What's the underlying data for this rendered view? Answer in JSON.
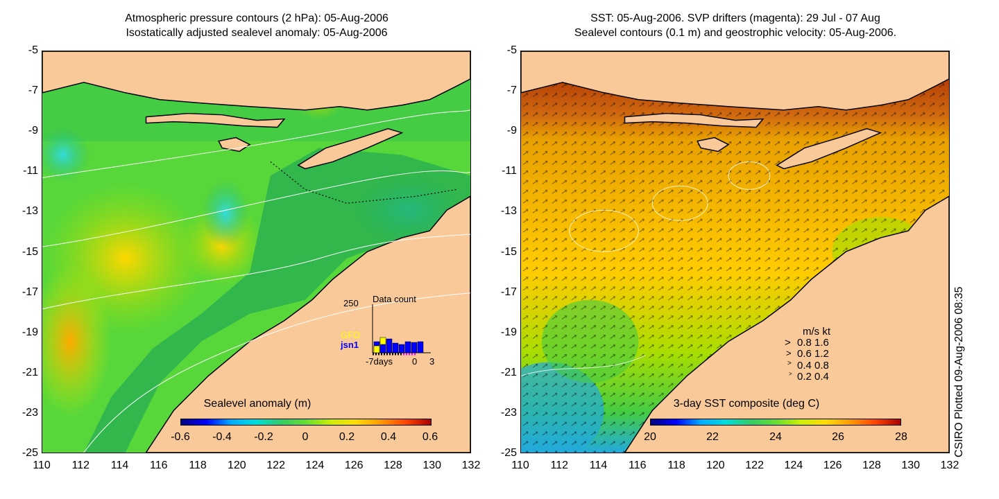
{
  "left_panel": {
    "title_line1": "Atmospheric pressure contours (2 hPa): 05-Aug-2006",
    "title_line2": "Isostatically adjusted sealevel anomaly: 05-Aug-2006",
    "colorbar_title": "Sealevel anomaly (m)",
    "colorbar_ticks": [
      "-0.6",
      "-0.4",
      "-0.2",
      "0",
      "0.2",
      "0.4",
      "0.6"
    ],
    "inset": {
      "title": "Data count",
      "max_label": "250",
      "missions": [
        "GFO",
        "jsn1"
      ],
      "mission_colors": [
        "#ffff00",
        "#0000ff"
      ],
      "x_labels": [
        "-7days",
        "0",
        "3"
      ]
    }
  },
  "right_panel": {
    "title_line1": "SST: 05-Aug-2006. SVP drifters (magenta): 29 Jul - 07 Aug",
    "title_line2": "Sealevel contours (0.1 m) and geostrophic velocity: 05-Aug-2006.",
    "colorbar_title": "3-day SST composite (deg C)",
    "colorbar_ticks": [
      "20",
      "22",
      "24",
      "26",
      "28"
    ],
    "velocity_legend": {
      "header": "m/s  kt",
      "rows": [
        "0.8  1.6",
        "0.6  1.2",
        "0.4  0.8",
        "0.2  0.4"
      ]
    }
  },
  "axes": {
    "y_ticks": [
      "-5",
      "-7",
      "-9",
      "-11",
      "-13",
      "-15",
      "-17",
      "-19",
      "-21",
      "-23",
      "-25"
    ],
    "x_ticks": [
      "110",
      "112",
      "114",
      "116",
      "118",
      "120",
      "122",
      "124",
      "126",
      "128",
      "130",
      "132"
    ],
    "lon_range": [
      110,
      132
    ],
    "lat_range": [
      -25,
      -5
    ]
  },
  "credit": "CSIRO Plotted 09-Aug-2006 08:35",
  "colors": {
    "land": "#f9c99a",
    "ocean_anomaly": "#33cc33",
    "sst_warm": "#e0a000"
  }
}
